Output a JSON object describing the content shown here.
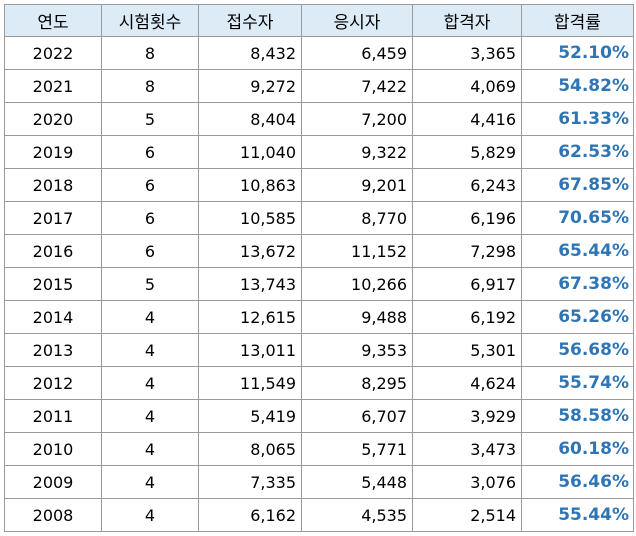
{
  "table": {
    "headers": [
      "연도",
      "시험횟수",
      "접수자",
      "응시자",
      "합격자",
      "합격률"
    ],
    "rows": [
      [
        "2022",
        "8",
        "8,432",
        "6,459",
        "3,365",
        "52.10%"
      ],
      [
        "2021",
        "8",
        "9,272",
        "7,422",
        "4,069",
        "54.82%"
      ],
      [
        "2020",
        "5",
        "8,404",
        "7,200",
        "4,416",
        "61.33%"
      ],
      [
        "2019",
        "6",
        "11,040",
        "9,322",
        "5,829",
        "62.53%"
      ],
      [
        "2018",
        "6",
        "10,863",
        "9,201",
        "6,243",
        "67.85%"
      ],
      [
        "2017",
        "6",
        "10,585",
        "8,770",
        "6,196",
        "70.65%"
      ],
      [
        "2016",
        "6",
        "13,672",
        "11,152",
        "7,298",
        "65.44%"
      ],
      [
        "2015",
        "5",
        "13,743",
        "10,266",
        "6,917",
        "67.38%"
      ],
      [
        "2014",
        "4",
        "12,615",
        "9,488",
        "6,192",
        "65.26%"
      ],
      [
        "2013",
        "4",
        "13,011",
        "9,353",
        "5,301",
        "56.68%"
      ],
      [
        "2012",
        "4",
        "11,549",
        "8,295",
        "4,624",
        "55.74%"
      ],
      [
        "2011",
        "4",
        "5,419",
        "6,707",
        "3,929",
        "58.58%"
      ],
      [
        "2010",
        "4",
        "8,065",
        "5,771",
        "3,473",
        "60.18%"
      ],
      [
        "2009",
        "4",
        "7,335",
        "5,448",
        "3,076",
        "56.46%"
      ],
      [
        "2008",
        "4",
        "6,162",
        "4,535",
        "2,514",
        "55.44%"
      ]
    ]
  },
  "colors": {
    "header_background": "#ddebf7",
    "rate_text": "#2e75b6",
    "border": "#9a9a9a"
  }
}
